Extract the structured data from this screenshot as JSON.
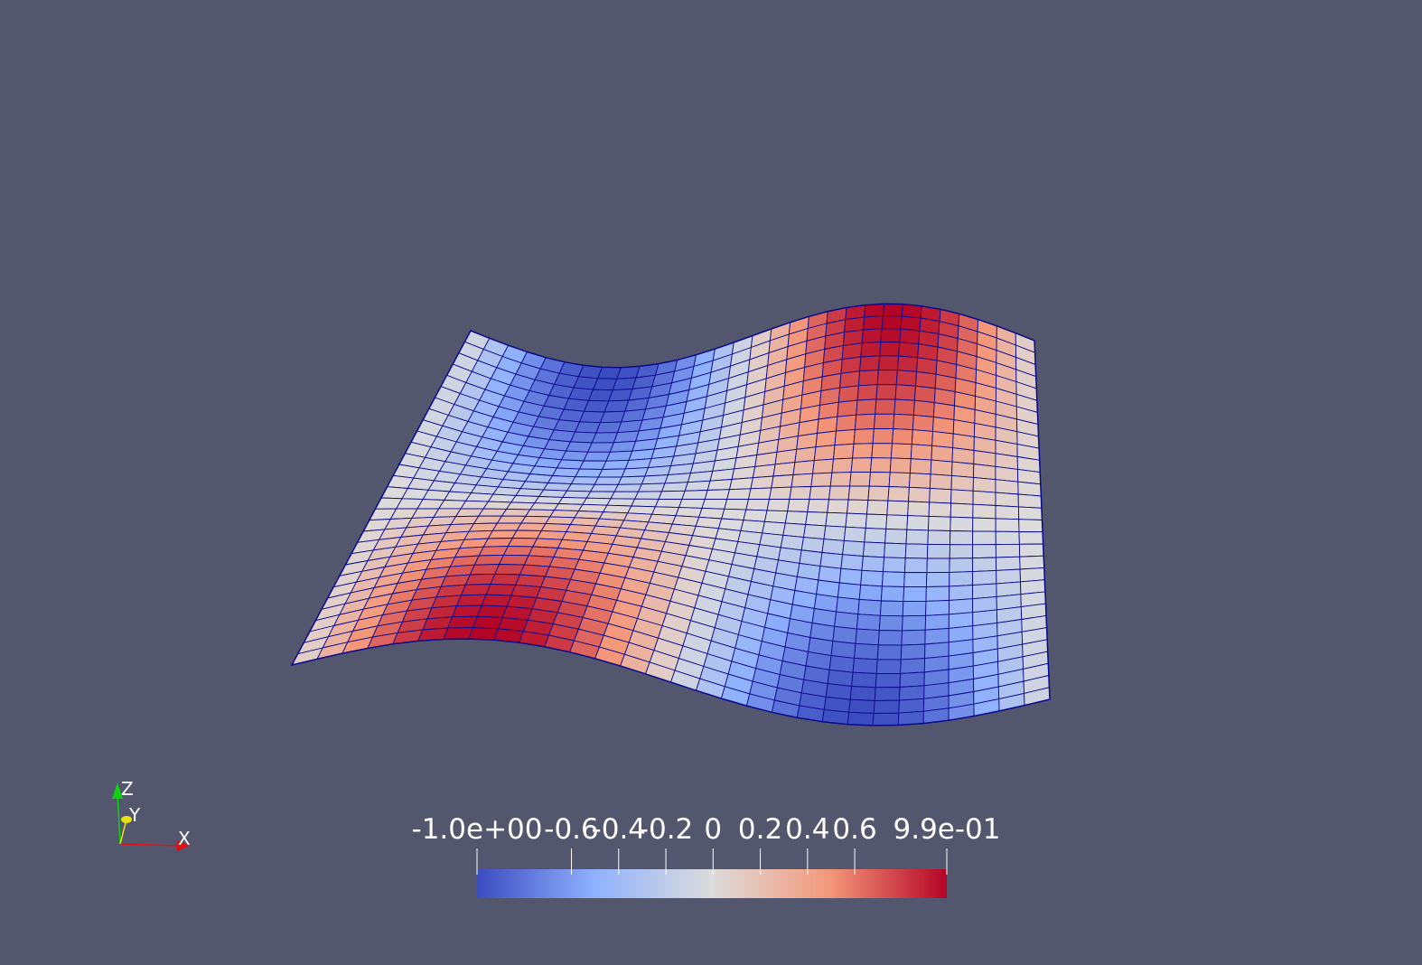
{
  "background_color": "#52576e",
  "surface": {
    "mesh_color": "#0a0a8c",
    "peaks": [
      {
        "sign": "positive",
        "location": "front-left"
      },
      {
        "sign": "positive",
        "location": "back-right"
      },
      {
        "sign": "negative",
        "location": "back-left"
      },
      {
        "sign": "negative",
        "location": "front-right"
      }
    ]
  },
  "colorbar": {
    "colormap": "Cool to Warm",
    "colors": [
      "#3b4cc0",
      "#8fb1fe",
      "#dddcdc",
      "#f4987a",
      "#b40426"
    ],
    "range": [
      -1.0,
      0.99
    ],
    "ticks": [
      {
        "value": -1.0,
        "label": "-1.0e+00"
      },
      {
        "value": -0.6,
        "label": "-0.6"
      },
      {
        "value": -0.4,
        "label": "-0.4"
      },
      {
        "value": -0.2,
        "label": "-0.2"
      },
      {
        "value": 0.0,
        "label": "0"
      },
      {
        "value": 0.2,
        "label": "0.2"
      },
      {
        "value": 0.4,
        "label": "0.4"
      },
      {
        "value": 0.6,
        "label": "0.6"
      },
      {
        "value": 0.99,
        "label": "9.9e-01"
      }
    ]
  },
  "orientation_axes": {
    "x_label": "X",
    "y_label": "Y",
    "z_label": "Z",
    "x_color": "#e01010",
    "y_color": "#e8e010",
    "z_color": "#10d010"
  }
}
